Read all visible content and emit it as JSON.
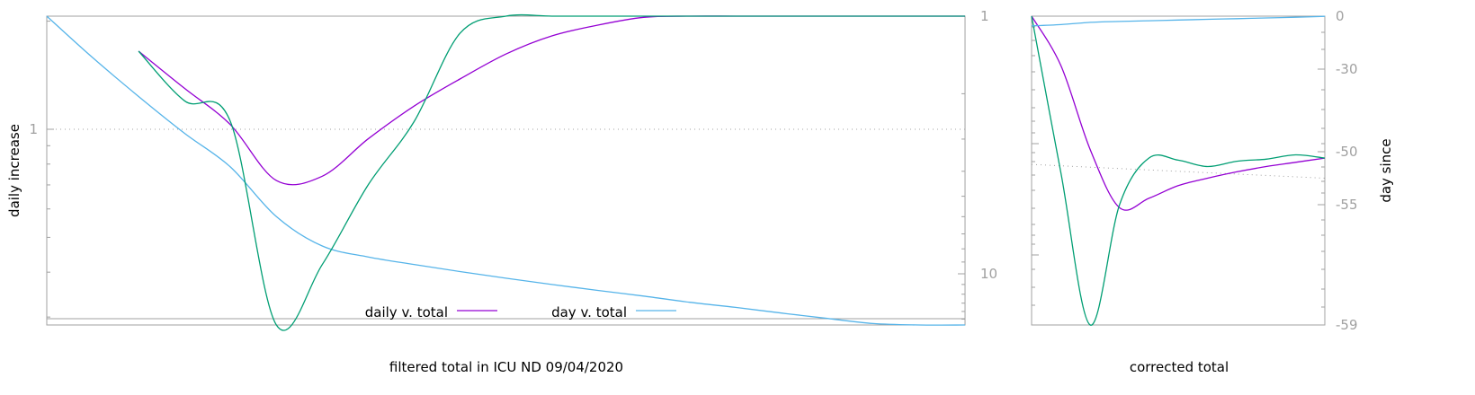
{
  "colors": {
    "purple": "#9400d3",
    "green": "#009e73",
    "blue": "#56b4e9",
    "frame": "#a0a0a0",
    "tick_text": "#a0a0a0",
    "reference": "#a0a0a0"
  },
  "chart_data": [
    {
      "type": "line",
      "panel": "main",
      "xlabel": "filtered total in ICU ND 09/04/2020",
      "ylabel": "daily increase",
      "grid": false,
      "legend_position": "bottom-center",
      "x": [
        0,
        5,
        10,
        15,
        20,
        25,
        30,
        35,
        40,
        45,
        50,
        55,
        60,
        65,
        70,
        75,
        80,
        85,
        90,
        95,
        100
      ],
      "left_axis": {
        "scale": "log",
        "ticks": [
          {
            "value": 1,
            "label": "1"
          }
        ],
        "reference_line": 1
      },
      "right_axis": {
        "scale": "log",
        "reversed": true,
        "range": [
          1,
          16.5
        ],
        "ticks": [
          {
            "value": 1,
            "label": "1"
          },
          {
            "value": 10,
            "label": "10"
          }
        ]
      },
      "series": [
        {
          "name": "daily v. total",
          "color_key": "purple",
          "axis": "left",
          "values": [
            null,
            null,
            1.65,
            1.3,
            1.03,
            0.72,
            0.74,
            0.94,
            1.16,
            1.38,
            1.62,
            1.82,
            1.95,
            2.05,
            2.15,
            2.25,
            2.35,
            2.45,
            2.55,
            2.62,
            2.62
          ]
        },
        {
          "name": "day v. total",
          "color_key": "blue",
          "axis": "right",
          "values": [
            1.0,
            1.45,
            2.05,
            2.85,
            3.85,
            6.0,
            7.8,
            8.6,
            9.2,
            9.8,
            10.4,
            11.0,
            11.6,
            12.2,
            12.9,
            13.5,
            14.2,
            14.9,
            15.6,
            16.2,
            16.5
          ]
        },
        {
          "color_key": "green",
          "axis": "left",
          "values": [
            null,
            null,
            1.65,
            1.2,
            1.05,
            0.06,
            0.42,
            0.7,
            1.05,
            1.85,
            2.62,
            2.66,
            2.65,
            2.2,
            2.35,
            2.45,
            2.25,
            2.6,
            3.05,
            2.9,
            2.7
          ]
        }
      ]
    },
    {
      "type": "line",
      "panel": "side",
      "xlabel": "corrected total",
      "ylabel": "day since",
      "grid": false,
      "x": [
        0,
        10,
        20,
        30,
        40,
        50,
        60,
        70,
        80,
        90,
        100
      ],
      "right_axis": {
        "ticks": [
          {
            "value": 0,
            "label": "0"
          },
          {
            "value": -30,
            "label": "-30"
          },
          {
            "value": -50,
            "label": "-50"
          },
          {
            "value": -55,
            "label": "-55"
          },
          {
            "value": -59,
            "label": "-59"
          }
        ]
      },
      "reference_line": {
        "from": -51.2,
        "to": -52.5
      },
      "series": [
        {
          "color_key": "purple",
          "values": [
            0,
            -28,
            -49.5,
            -55.1,
            -54.4,
            -53.2,
            -52.5,
            -51.9,
            -51.4,
            -51.0,
            -50.6
          ]
        },
        {
          "color_key": "green",
          "values": [
            0,
            -52,
            -59,
            -55,
            -50.6,
            -50.8,
            -51.4,
            -50.9,
            -50.7,
            -50.3,
            -50.6
          ]
        },
        {
          "color_key": "blue",
          "values": [
            -5.5,
            -4.8,
            -3.5,
            -3.0,
            -2.6,
            -2.2,
            -1.8,
            -1.4,
            -1.0,
            -0.6,
            -0.1
          ]
        }
      ]
    }
  ]
}
